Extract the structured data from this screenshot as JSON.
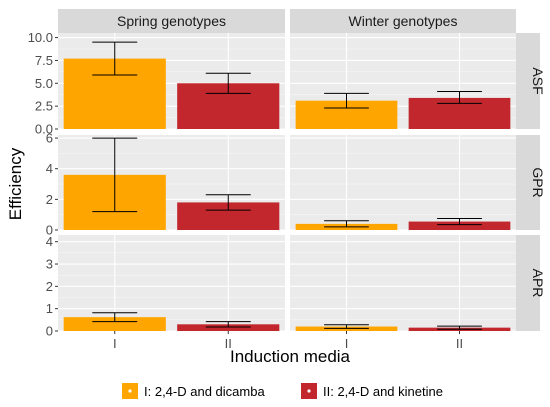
{
  "chart_data": {
    "type": "bar",
    "x_label": "Induction media",
    "y_label": "Efficiency",
    "categories": [
      "I",
      "II"
    ],
    "columns": [
      "Spring genotypes",
      "Winter genotypes"
    ],
    "rows": [
      {
        "name": "ASF",
        "ylim": [
          0,
          10.5
        ],
        "ticks": [
          0.0,
          2.5,
          5.0,
          7.5,
          10.0
        ],
        "tick_labels": [
          "0.0",
          "2.5",
          "5.0",
          "7.5",
          "10.0"
        ]
      },
      {
        "name": "GPR",
        "ylim": [
          0,
          6.2
        ],
        "ticks": [
          0,
          2,
          4,
          6
        ],
        "tick_labels": [
          "0",
          "2",
          "4",
          "6"
        ]
      },
      {
        "name": "APR",
        "ylim": [
          0,
          4.3
        ],
        "ticks": [
          0,
          1,
          2,
          3,
          4
        ],
        "tick_labels": [
          "0",
          "1",
          "2",
          "3",
          "4"
        ]
      }
    ],
    "series": [
      {
        "name": "I: 2,4-D and dicamba",
        "color": "#FFA500"
      },
      {
        "name": "II: 2,4-D and kinetine",
        "color": "#C1272D"
      }
    ],
    "data": {
      "ASF": {
        "Spring genotypes": [
          {
            "category": "I",
            "value": 7.7,
            "err_low": 5.9,
            "err_high": 9.5
          },
          {
            "category": "II",
            "value": 5.0,
            "err_low": 3.9,
            "err_high": 6.1
          }
        ],
        "Winter genotypes": [
          {
            "category": "I",
            "value": 3.1,
            "err_low": 2.3,
            "err_high": 3.9
          },
          {
            "category": "II",
            "value": 3.4,
            "err_low": 2.8,
            "err_high": 4.1
          }
        ]
      },
      "GPR": {
        "Spring genotypes": [
          {
            "category": "I",
            "value": 3.6,
            "err_low": 1.2,
            "err_high": 6.0
          },
          {
            "category": "II",
            "value": 1.8,
            "err_low": 1.3,
            "err_high": 2.3
          }
        ],
        "Winter genotypes": [
          {
            "category": "I",
            "value": 0.4,
            "err_low": 0.2,
            "err_high": 0.6
          },
          {
            "category": "II",
            "value": 0.55,
            "err_low": 0.35,
            "err_high": 0.75
          }
        ]
      },
      "APR": {
        "Spring genotypes": [
          {
            "category": "I",
            "value": 0.62,
            "err_low": 0.42,
            "err_high": 0.82
          },
          {
            "category": "II",
            "value": 0.3,
            "err_low": 0.18,
            "err_high": 0.42
          }
        ],
        "Winter genotypes": [
          {
            "category": "I",
            "value": 0.2,
            "err_low": 0.12,
            "err_high": 0.28
          },
          {
            "category": "II",
            "value": 0.15,
            "err_low": 0.08,
            "err_high": 0.22
          }
        ]
      }
    },
    "legend_position": "bottom",
    "grid": true
  }
}
